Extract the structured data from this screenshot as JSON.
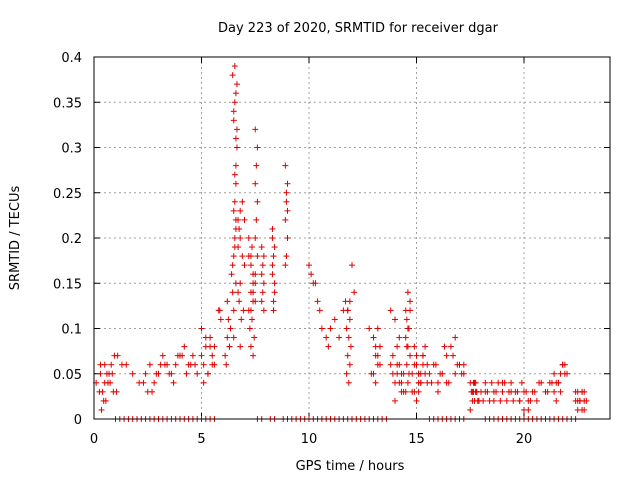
{
  "chart_data": {
    "type": "scatter",
    "title": "Day 223 of 2020, SRMTID for receiver dgar",
    "xlabel": "GPS time / hours",
    "ylabel": "SRMTID / TECUs",
    "xlim": [
      0,
      24
    ],
    "ylim": [
      0,
      0.4
    ],
    "x_ticks": [
      0,
      5,
      10,
      15,
      20
    ],
    "y_ticks": [
      0,
      0.05,
      0.1,
      0.15,
      0.2,
      0.25,
      0.3,
      0.35,
      0.4
    ],
    "x_tick_labels": [
      "0",
      "5",
      "10",
      "15",
      "20"
    ],
    "y_tick_labels": [
      "0",
      "0.05",
      "0.1",
      "0.15",
      "0.2",
      "0.25",
      "0.3",
      "0.35",
      "0.4"
    ],
    "grid": true,
    "marker": "+",
    "marker_color": "#e00000",
    "series": [
      {
        "name": "SRMTID",
        "approximate": true,
        "x": [
          0.1,
          0.3,
          0.5,
          0.7,
          0.9,
          1.1,
          1.3,
          0.25,
          0.45,
          0.65,
          0.85,
          1.05,
          0.35,
          0.55,
          0.75,
          0.95,
          0.4,
          0.6,
          0.8,
          0.3,
          0.5,
          1.5,
          1.8,
          2.1,
          2.4,
          2.6,
          2.8,
          3.0,
          3.2,
          3.4,
          3.6,
          3.8,
          4.0,
          4.2,
          4.4,
          4.6,
          4.8,
          2.5,
          3.1,
          3.5,
          4.1,
          4.5,
          2.3,
          2.9,
          3.3,
          3.9,
          4.3,
          2.7,
          3.7,
          4.7,
          5.0,
          5.1,
          5.2,
          5.3,
          5.4,
          5.5,
          5.6,
          5.1,
          5.3,
          5.5,
          5.2,
          5.4,
          5.0,
          5.6,
          5.8,
          5.9,
          5.85,
          6.1,
          6.2,
          6.3,
          6.15,
          6.25,
          6.35,
          6.2,
          6.3,
          6.4,
          6.45,
          6.5,
          6.5,
          6.55,
          6.55,
          6.6,
          6.6,
          6.6,
          6.65,
          6.65,
          6.5,
          6.55,
          6.6,
          6.45,
          6.55,
          6.65,
          6.5,
          6.6,
          6.55,
          6.5,
          6.6,
          6.55,
          6.45,
          6.6,
          6.5,
          6.7,
          6.75,
          6.8,
          6.9,
          7.0,
          6.8,
          6.9,
          7.0,
          6.7,
          6.8,
          6.75,
          6.85,
          6.95,
          6.7,
          6.8,
          7.2,
          7.3,
          7.4,
          7.5,
          7.3,
          7.4,
          7.2,
          7.5,
          7.3,
          7.4,
          7.35,
          7.25,
          7.45,
          7.3,
          7.4,
          7.5,
          7.2,
          7.4,
          7.3,
          7.35,
          7.5,
          7.6,
          7.55,
          7.5,
          7.6,
          7.55,
          7.5,
          7.6,
          7.8,
          7.9,
          7.85,
          7.8,
          7.9,
          7.85,
          7.8,
          7.9,
          8.3,
          8.4,
          8.35,
          8.3,
          8.4,
          8.35,
          8.3,
          8.4,
          8.35,
          8.3,
          8.9,
          9.0,
          8.95,
          8.9,
          9.0,
          8.95,
          8.9,
          9.0,
          8.95,
          10.0,
          10.1,
          10.2,
          10.3,
          10.4,
          10.5,
          10.6,
          10.8,
          10.9,
          11.0,
          11.2,
          11.4,
          11.6,
          11.7,
          11.8,
          11.9,
          11.75,
          11.85,
          11.95,
          11.8,
          11.9,
          11.75,
          11.85,
          12.0,
          12.1,
          11.9,
          11.8,
          12.8,
          13.0,
          13.1,
          13.2,
          13.3,
          12.9,
          13.1,
          13.2,
          13.0,
          13.3,
          13.1,
          13.2,
          13.0,
          13.8,
          13.9,
          14.0,
          14.1,
          14.2,
          14.3,
          14.4,
          13.9,
          14.1,
          14.3,
          14.0,
          14.2,
          14.4,
          13.8,
          14.0,
          14.2,
          14.1,
          14.3,
          14.5,
          14.6,
          14.7,
          14.55,
          14.65,
          14.5,
          14.6,
          14.7,
          14.55,
          14.65,
          14.6,
          14.5,
          14.7,
          14.6,
          14.55,
          14.8,
          14.9,
          15.0,
          15.1,
          15.2,
          15.3,
          15.4,
          15.5,
          14.9,
          15.1,
          15.3,
          15.0,
          15.2,
          15.4,
          14.8,
          15.0,
          15.2,
          15.1,
          15.3,
          15.5,
          14.9,
          15.1,
          15.6,
          15.8,
          16.0,
          16.2,
          16.4,
          16.6,
          16.8,
          17.0,
          17.2,
          15.7,
          15.9,
          16.1,
          16.3,
          16.5,
          16.7,
          16.9,
          17.1,
          16.0,
          16.4,
          16.8,
          17.2,
          17.5,
          17.6,
          17.7,
          17.8,
          17.9,
          17.55,
          17.65,
          17.75,
          17.85,
          17.6,
          17.7,
          17.8,
          17.5,
          17.9,
          17.65,
          17.75,
          18.0,
          18.2,
          18.4,
          18.6,
          18.8,
          19.0,
          19.2,
          19.4,
          19.6,
          19.8,
          20.0,
          18.1,
          18.3,
          18.5,
          18.7,
          18.9,
          19.1,
          19.3,
          19.5,
          19.7,
          19.9,
          18.2,
          18.6,
          19.0,
          19.4,
          19.8,
          20.2,
          20.4,
          20.6,
          20.8,
          20.1,
          20.3,
          20.5,
          20.7,
          20.0,
          20.2,
          21.0,
          21.2,
          21.4,
          21.6,
          21.8,
          22.0,
          21.1,
          21.3,
          21.5,
          21.7,
          21.9,
          21.5,
          21.7,
          21.9,
          21.6,
          21.8,
          21.4,
          22.4,
          22.5,
          22.6,
          22.7,
          22.8,
          22.9,
          22.5,
          22.6,
          22.7,
          22.8,
          22.4,
          22.6,
          22.8,
          22.5,
          22.7
        ],
        "y": [
          0.04,
          0.05,
          0.06,
          0.05,
          0.03,
          0.07,
          0.06,
          0.03,
          0.02,
          0.04,
          0.05,
          0.03,
          0.01,
          0.02,
          0.04,
          0.07,
          0.03,
          0.05,
          0.06,
          0.06,
          0.04,
          0.06,
          0.05,
          0.04,
          0.05,
          0.06,
          0.04,
          0.05,
          0.07,
          0.06,
          0.05,
          0.06,
          0.07,
          0.08,
          0.06,
          0.07,
          0.05,
          0.03,
          0.06,
          0.05,
          0.07,
          0.06,
          0.04,
          0.05,
          0.06,
          0.07,
          0.05,
          0.03,
          0.04,
          0.06,
          0.07,
          0.06,
          0.08,
          0.05,
          0.09,
          0.07,
          0.06,
          0.04,
          0.05,
          0.06,
          0.09,
          0.08,
          0.1,
          0.08,
          0.12,
          0.11,
          0.12,
          0.07,
          0.09,
          0.08,
          0.06,
          0.11,
          0.1,
          0.13,
          0.08,
          0.16,
          0.14,
          0.12,
          0.18,
          0.2,
          0.24,
          0.22,
          0.26,
          0.28,
          0.3,
          0.32,
          0.33,
          0.35,
          0.36,
          0.38,
          0.39,
          0.37,
          0.34,
          0.31,
          0.27,
          0.23,
          0.21,
          0.19,
          0.17,
          0.15,
          0.09,
          0.22,
          0.21,
          0.23,
          0.24,
          0.22,
          0.2,
          0.18,
          0.17,
          0.19,
          0.15,
          0.13,
          0.11,
          0.12,
          0.14,
          0.08,
          0.2,
          0.18,
          0.16,
          0.15,
          0.14,
          0.13,
          0.12,
          0.16,
          0.17,
          0.15,
          0.11,
          0.1,
          0.09,
          0.08,
          0.07,
          0.13,
          0.18,
          0.14,
          0.12,
          0.19,
          0.32,
          0.3,
          0.28,
          0.26,
          0.24,
          0.22,
          0.2,
          0.18,
          0.19,
          0.18,
          0.17,
          0.16,
          0.15,
          0.14,
          0.13,
          0.12,
          0.16,
          0.14,
          0.18,
          0.2,
          0.15,
          0.13,
          0.17,
          0.19,
          0.12,
          0.21,
          0.28,
          0.26,
          0.25,
          0.22,
          0.2,
          0.18,
          0.17,
          0.23,
          0.24,
          0.17,
          0.16,
          0.15,
          0.15,
          0.13,
          0.12,
          0.1,
          0.09,
          0.08,
          0.1,
          0.11,
          0.09,
          0.12,
          0.13,
          0.12,
          0.11,
          0.1,
          0.09,
          0.08,
          0.07,
          0.06,
          0.05,
          0.04,
          0.17,
          0.14,
          0.13,
          0.12,
          0.1,
          0.09,
          0.08,
          0.07,
          0.06,
          0.05,
          0.04,
          0.1,
          0.09,
          0.08,
          0.07,
          0.06,
          0.05,
          0.06,
          0.05,
          0.04,
          0.05,
          0.06,
          0.04,
          0.03,
          0.07,
          0.06,
          0.05,
          0.02,
          0.04,
          0.05,
          0.12,
          0.11,
          0.09,
          0.08,
          0.03,
          0.12,
          0.14,
          0.13,
          0.11,
          0.1,
          0.09,
          0.08,
          0.07,
          0.06,
          0.05,
          0.04,
          0.03,
          0.12,
          0.1,
          0.08,
          0.05,
          0.06,
          0.07,
          0.04,
          0.05,
          0.06,
          0.08,
          0.04,
          0.03,
          0.05,
          0.07,
          0.06,
          0.04,
          0.05,
          0.03,
          0.02,
          0.04,
          0.05,
          0.07,
          0.06,
          0.08,
          0.03,
          0.05,
          0.06,
          0.04,
          0.05,
          0.07,
          0.08,
          0.09,
          0.06,
          0.05,
          0.04,
          0.06,
          0.05,
          0.08,
          0.04,
          0.07,
          0.06,
          0.05,
          0.03,
          0.04,
          0.05,
          0.06,
          0.04,
          0.03,
          0.02,
          0.03,
          0.02,
          0.03,
          0.04,
          0.03,
          0.02,
          0.02,
          0.04,
          0.03,
          0.01,
          0.02,
          0.03,
          0.04,
          0.03,
          0.04,
          0.02,
          0.03,
          0.04,
          0.03,
          0.02,
          0.04,
          0.03,
          0.02,
          0.03,
          0.02,
          0.03,
          0.04,
          0.03,
          0.02,
          0.04,
          0.03,
          0.02,
          0.03,
          0.04,
          0.03,
          0.02,
          0.04,
          0.03,
          0.02,
          0.01,
          0.03,
          0.02,
          0.04,
          0.03,
          0.02,
          0.03,
          0.04,
          0.01,
          0.02,
          0.03,
          0.04,
          0.05,
          0.04,
          0.06,
          0.05,
          0.03,
          0.04,
          0.02,
          0.05,
          0.06,
          0.04,
          0.03,
          0.05,
          0.04,
          0.06,
          0.03,
          0.02,
          0.03,
          0.02,
          0.01,
          0.03,
          0.02,
          0.01,
          0.02,
          0.03,
          0.02,
          0.03,
          0.02,
          0.01,
          0.02,
          0.03
        ]
      },
      {
        "name": "zero-baseline",
        "approximate": true,
        "x": [
          1.0,
          1.2,
          1.4,
          1.6,
          1.8,
          2.0,
          2.2,
          2.4,
          2.6,
          2.8,
          3.0,
          3.2,
          3.4,
          3.6,
          3.8,
          4.0,
          4.2,
          4.4,
          4.6,
          4.8,
          5.0,
          5.2,
          5.4,
          5.6,
          7.6,
          7.8,
          8.2,
          8.4,
          8.8,
          9.0,
          9.2,
          9.4,
          9.6,
          9.8,
          10.0,
          10.2,
          10.4,
          10.6,
          10.8,
          11.0,
          11.2,
          11.4,
          11.6,
          11.8,
          12.0,
          12.2,
          12.4,
          12.6,
          12.8,
          13.0,
          13.2,
          13.4,
          13.6,
          15.6,
          15.8,
          16.0,
          16.2,
          16.4,
          16.6,
          16.8,
          17.0,
          17.2,
          18.2,
          18.4,
          18.6,
          18.8,
          19.0,
          19.2,
          19.4,
          19.6,
          19.8,
          20.0,
          20.2,
          20.4,
          20.6,
          20.8,
          21.0,
          21.2,
          21.4,
          21.6,
          21.8,
          22.0,
          22.2,
          22.4
        ],
        "y": [
          0,
          0,
          0,
          0,
          0,
          0,
          0,
          0,
          0,
          0,
          0,
          0,
          0,
          0,
          0,
          0,
          0,
          0,
          0,
          0,
          0,
          0,
          0,
          0,
          0,
          0,
          0,
          0,
          0,
          0,
          0,
          0,
          0,
          0,
          0,
          0,
          0,
          0,
          0,
          0,
          0,
          0,
          0,
          0,
          0,
          0,
          0,
          0,
          0,
          0,
          0,
          0,
          0,
          0,
          0,
          0,
          0,
          0,
          0,
          0,
          0,
          0,
          0,
          0,
          0,
          0,
          0,
          0,
          0,
          0,
          0,
          0,
          0,
          0,
          0,
          0,
          0,
          0,
          0,
          0,
          0,
          0,
          0,
          0
        ]
      }
    ]
  }
}
